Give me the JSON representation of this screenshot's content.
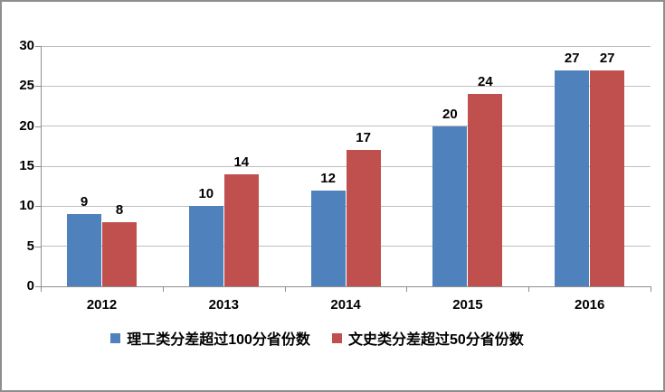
{
  "chart_data": {
    "type": "bar",
    "title": "",
    "xlabel": "",
    "ylabel": "",
    "categories": [
      "2012",
      "2013",
      "2014",
      "2015",
      "2016"
    ],
    "series": [
      {
        "name": "理工类分差超过100分省份数",
        "color": "#4F81BD",
        "values": [
          9,
          10,
          12,
          20,
          27
        ]
      },
      {
        "name": "文史类分差超过50分省份数",
        "color": "#C0504D",
        "values": [
          8,
          14,
          17,
          24,
          27
        ]
      }
    ],
    "ylim": [
      0,
      30
    ],
    "yticks": [
      0,
      5,
      10,
      15,
      20,
      25,
      30
    ],
    "grid": true,
    "data_labels": true,
    "legend_position": "bottom"
  },
  "colors": {
    "background": "#FFFFFF",
    "frame_border": "#8E8E8E",
    "gridline": "#BFBFBF",
    "axis": "#8E8E8E",
    "label_text": "#000000"
  }
}
